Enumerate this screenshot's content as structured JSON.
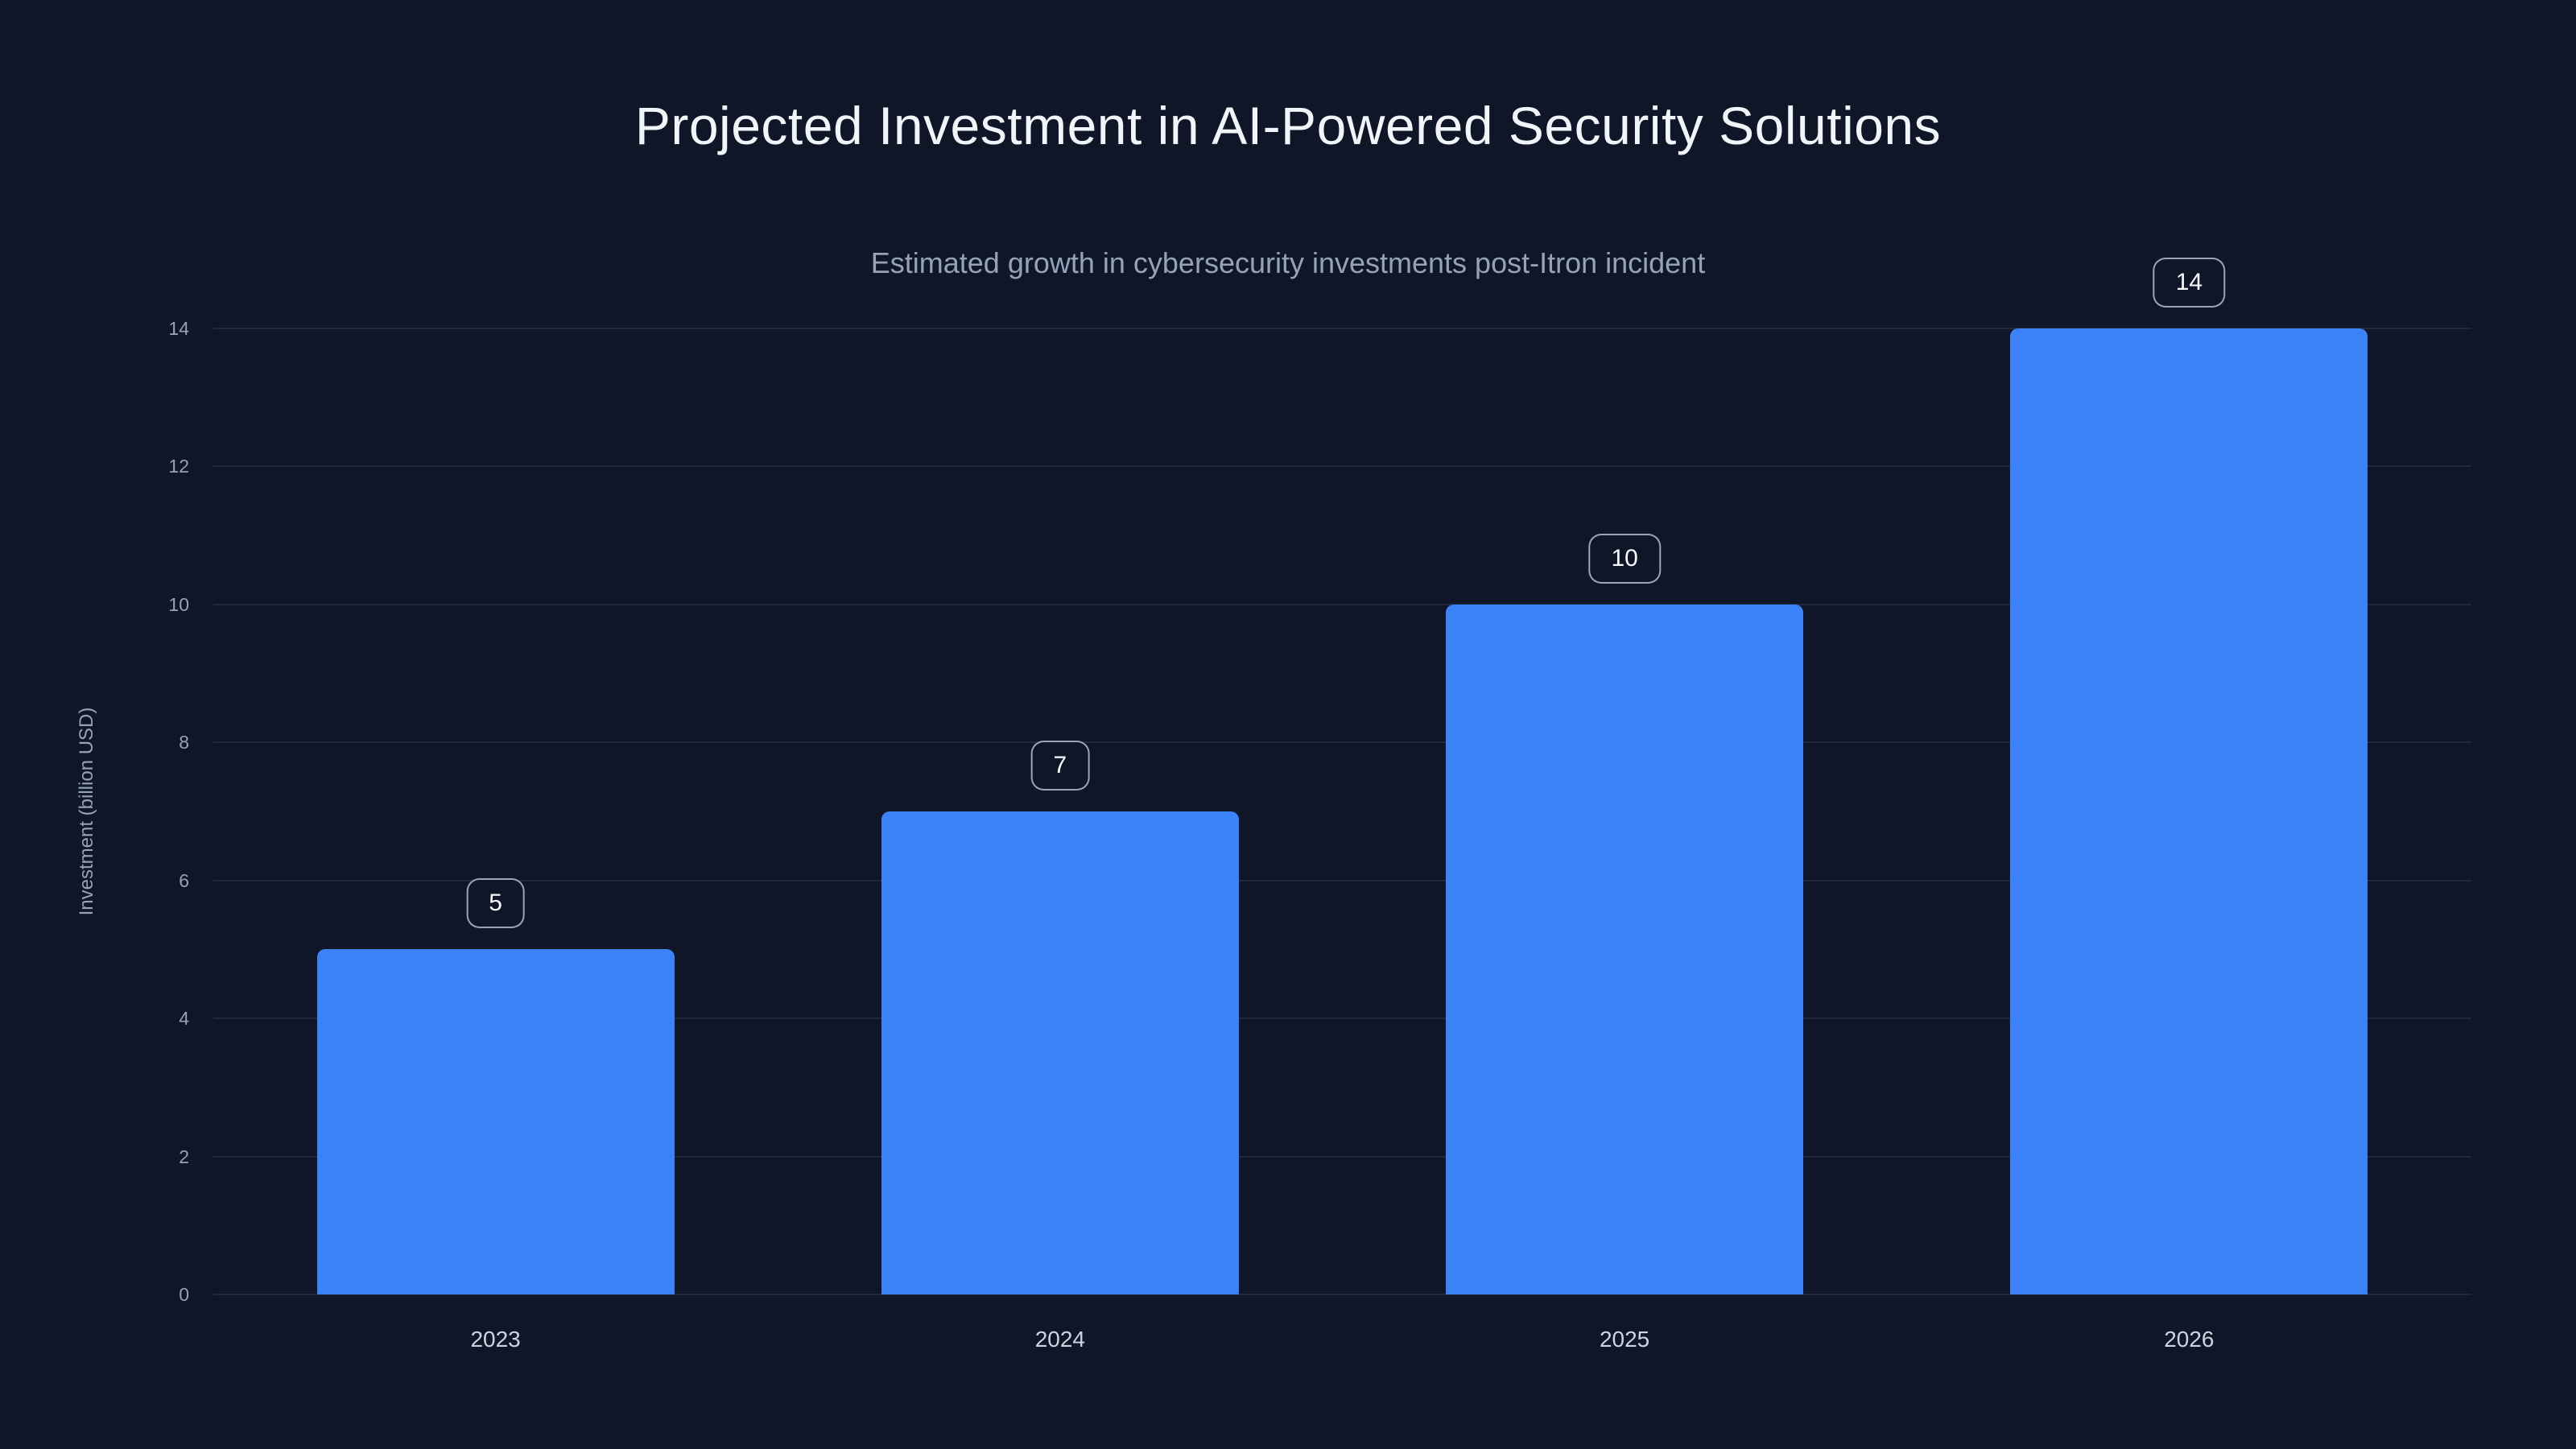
{
  "page": {
    "background": "#0e1627"
  },
  "header": {
    "title": "Projected Investment in AI-Powered Security Solutions",
    "subtitle": "Estimated growth in cybersecurity investments post-Itron incident"
  },
  "chart_data": {
    "type": "bar",
    "title": "Projected Investment in AI-Powered Security Solutions",
    "subtitle": "Estimated growth in cybersecurity investments post-Itron incident",
    "categories": [
      "2023",
      "2024",
      "2025",
      "2026"
    ],
    "values": [
      5,
      7,
      10,
      14
    ],
    "value_labels": [
      "5",
      "7",
      "10",
      "14"
    ],
    "xlabel": "",
    "ylabel": "Investment (billion USD)",
    "ylim": [
      0,
      14
    ],
    "yticks": [
      0,
      2,
      4,
      6,
      8,
      10,
      12,
      14
    ],
    "grid": "horizontal",
    "legend": "none",
    "bar_color": "#3b82f6",
    "text_color": "#f1f5f9",
    "muted_text_color": "#94a3b8",
    "background_color": "#0e1627"
  }
}
